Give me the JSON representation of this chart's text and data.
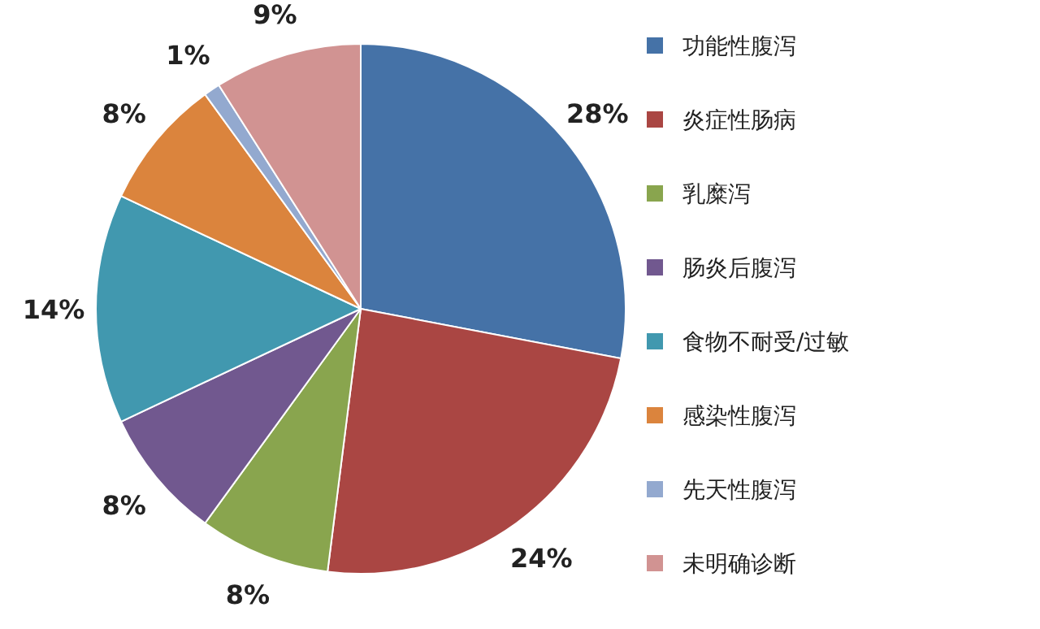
{
  "chart_data": {
    "type": "pie",
    "categories": [
      "功能性腹泻",
      "炎症性肠病",
      "乳糜泻",
      "肠炎后腹泻",
      "食物不耐受/过敏",
      "感染性腹泻",
      "先天性腹泻",
      "未明确诊断"
    ],
    "values": [
      28,
      24,
      8,
      8,
      14,
      8,
      1,
      9
    ],
    "value_labels": [
      "28%",
      "24%",
      "8%",
      "8%",
      "14%",
      "8%",
      "1%",
      "9%"
    ],
    "colors": [
      "#4572a7",
      "#aa4643",
      "#89a54e",
      "#71588f",
      "#4198af",
      "#db843d",
      "#93a9cf",
      "#d19392"
    ],
    "legend": "right"
  }
}
